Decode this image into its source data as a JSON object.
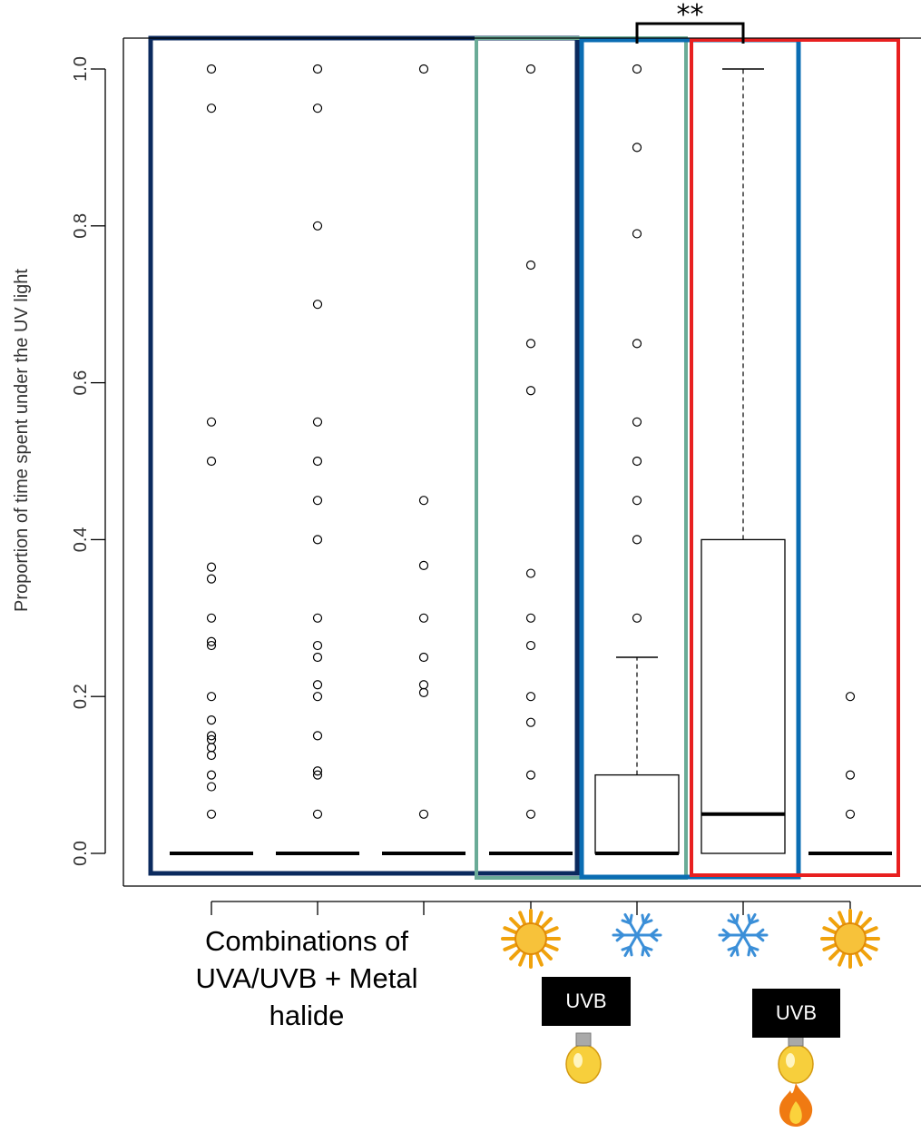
{
  "chart_data": {
    "type": "box",
    "ylabel": "Proportion of time spent under the UV light",
    "yticks": [
      "0.0",
      "0.2",
      "0.4",
      "0.6",
      "0.8",
      "1.0"
    ],
    "ylim": [
      -0.04,
      1.04
    ],
    "groups": [
      {
        "median": 0,
        "q1": 0,
        "q3": 0,
        "outliers": [
          1.0,
          0.95,
          0.55,
          0.5,
          0.365,
          0.35,
          0.3,
          0.27,
          0.265,
          0.2,
          0.17,
          0.15,
          0.145,
          0.135,
          0.125,
          0.1,
          0.085,
          0.05
        ]
      },
      {
        "median": 0,
        "q1": 0,
        "q3": 0,
        "outliers": [
          1.0,
          0.95,
          0.8,
          0.7,
          0.55,
          0.5,
          0.45,
          0.4,
          0.3,
          0.265,
          0.25,
          0.215,
          0.2,
          0.15,
          0.105,
          0.1,
          0.05
        ]
      },
      {
        "median": 0,
        "q1": 0,
        "q3": 0,
        "outliers": [
          1.0,
          0.45,
          0.367,
          0.3,
          0.25,
          0.215,
          0.205,
          0.05
        ]
      },
      {
        "median": 0,
        "q1": 0,
        "q3": 0,
        "outliers": [
          1.0,
          0.75,
          0.65,
          0.59,
          0.357,
          0.3,
          0.265,
          0.2,
          0.167,
          0.1,
          0.05
        ]
      },
      {
        "median": 0,
        "q1": 0,
        "q3": 0.1,
        "whisker_low": 0,
        "whisker_high": 0.25,
        "outliers": [
          1.0,
          0.9,
          0.79,
          0.65,
          0.55,
          0.5,
          0.45,
          0.4,
          0.3
        ]
      },
      {
        "median": 0.05,
        "q1": 0,
        "q3": 0.4,
        "whisker_low": 0,
        "whisker_high": 1.0,
        "outliers": []
      },
      {
        "median": 0,
        "q1": 0,
        "q3": 0,
        "outliers": [
          0.2,
          0.1,
          0.05
        ]
      }
    ],
    "frames": [
      {
        "color": "#0b2a5e",
        "from_group": 1,
        "to_group": 4
      },
      {
        "color": "#6aab97",
        "from_group": 4,
        "to_group": 5
      },
      {
        "color": "#0a6db3",
        "from_group": 5,
        "to_group": 6
      },
      {
        "color": "#e82020",
        "from_group": 6,
        "to_group": 7
      }
    ],
    "significance": {
      "label": "**",
      "between_groups": [
        5,
        6
      ]
    },
    "icons": [
      {
        "group": 4,
        "items": [
          "sun-icon",
          "bulb-icon"
        ]
      },
      {
        "group": 5,
        "items": [
          "snowflake-icon"
        ]
      },
      {
        "group": 6,
        "items": [
          "snowflake-icon",
          "bulb-icon",
          "flame-icon"
        ]
      },
      {
        "group": 7,
        "items": [
          "sun-icon"
        ]
      }
    ],
    "annotations": {
      "caption_lines": [
        "Combinations of",
        "UVA/UVB + Metal",
        "halide"
      ],
      "uvb_labels": [
        "UVB",
        "UVB"
      ]
    },
    "colors": {
      "navy": "#0b2a5e",
      "teal": "#6aab97",
      "blue": "#0a6db3",
      "red": "#e82020"
    }
  }
}
